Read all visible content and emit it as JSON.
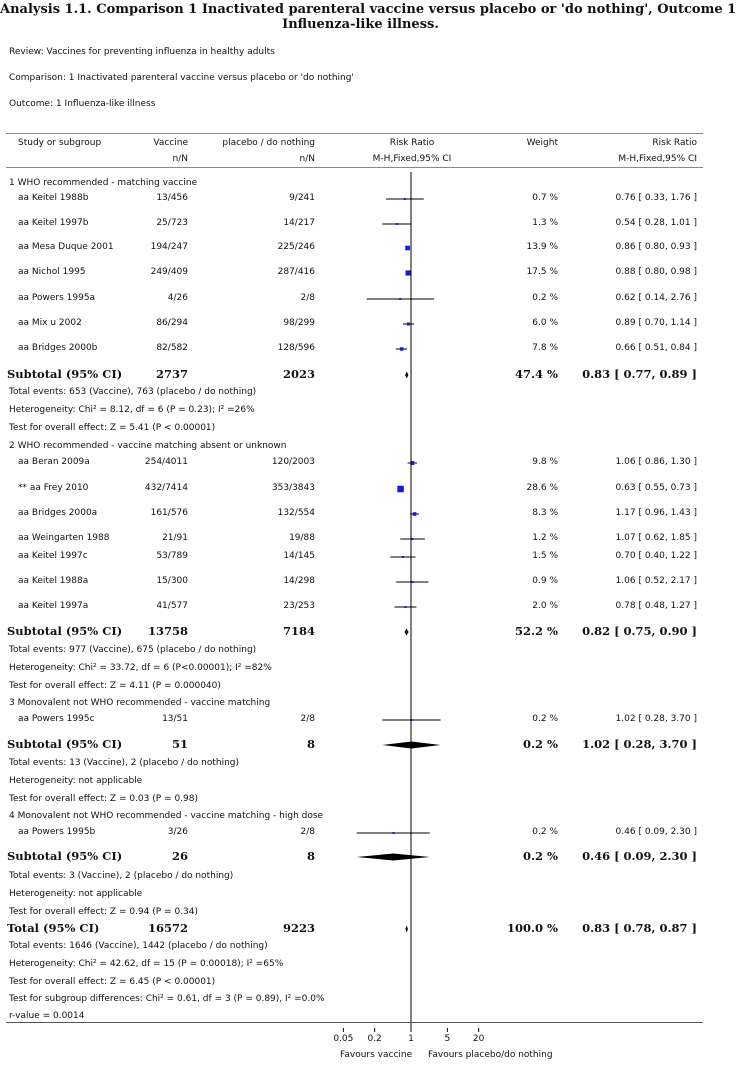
{
  "title_line1": "Analysis 1.1.   Comparison 1 Inactivated parenteral vaccine versus placebo or 'do nothing', Outcome 1",
  "title_line2": "Influenza-like illness.",
  "review": "Review:    Vaccines for preventing influenza in healthy adults",
  "comparison": "Comparison:    1 Inactivated parenteral vaccine versus placebo or 'do nothing'",
  "outcome": "Outcome:    1 Influenza-like illness",
  "headers": {
    "study": "Study or subgroup",
    "vaccine": "Vaccine",
    "vaccine_sub": "n/N",
    "placebo": "placebo / do nothing",
    "placebo_sub": "n/N",
    "rr": "Risk Ratio",
    "rr_sub": "M-H,Fixed,95% CI",
    "weight": "Weight",
    "rr2": "Risk Ratio",
    "rr2_sub": "M-H,Fixed,95% CI"
  },
  "groups": [
    {
      "heading": "1 WHO recommended - matching vaccine",
      "studies": [
        {
          "name": "aa Keitel 1988b",
          "vac": "13/456",
          "pla": "9/241",
          "weight": "0.7 %",
          "ci": "0.76 [ 0.33, 1.76 ]",
          "rr": 0.76,
          "lo": 0.33,
          "hi": 1.76,
          "w": 0.7
        },
        {
          "name": "aa Keitel 1997b",
          "vac": "25/723",
          "pla": "14/217",
          "weight": "1.3 %",
          "ci": "0.54 [ 0.28, 1.01 ]",
          "rr": 0.54,
          "lo": 0.28,
          "hi": 1.01,
          "w": 1.3
        },
        {
          "name": "aa Mesa Duque 2001",
          "vac": "194/247",
          "pla": "225/246",
          "weight": "13.9 %",
          "ci": "0.86 [ 0.80, 0.93 ]",
          "rr": 0.86,
          "lo": 0.8,
          "hi": 0.93,
          "w": 13.9
        },
        {
          "name": "aa Nichol 1995",
          "vac": "249/409",
          "pla": "287/416",
          "weight": "17.5 %",
          "ci": "0.88 [ 0.80, 0.98 ]",
          "rr": 0.88,
          "lo": 0.8,
          "hi": 0.98,
          "w": 17.5
        },
        {
          "name": "aa Powers 1995a",
          "vac": "4/26",
          "pla": "2/8",
          "weight": "0.2 %",
          "ci": "0.62 [ 0.14, 2.76 ]",
          "rr": 0.62,
          "lo": 0.14,
          "hi": 2.76,
          "w": 0.2
        },
        {
          "name": "aa Mix   u 2002",
          "vac": "86/294",
          "pla": "98/299",
          "weight": "6.0 %",
          "ci": "0.89 [ 0.70, 1.14 ]",
          "rr": 0.89,
          "lo": 0.7,
          "hi": 1.14,
          "w": 6.0
        },
        {
          "name": "aa Bridges 2000b",
          "vac": "82/582",
          "pla": "128/596",
          "weight": "7.8 %",
          "ci": "0.66 [ 0.51, 0.84 ]",
          "rr": 0.66,
          "lo": 0.51,
          "hi": 0.84,
          "w": 7.8
        }
      ],
      "subtotal": {
        "label": "Subtotal (95% CI)",
        "vac": "2737",
        "pla": "2023",
        "weight": "47.4 %",
        "ci": "0.83 [ 0.77, 0.89 ]",
        "rr": 0.83,
        "lo": 0.77,
        "hi": 0.89
      },
      "notes": [
        "Total events: 653 (Vaccine), 763 (placebo / do nothing)",
        "Heterogeneity: Chi² = 8.12, df = 6 (P = 0.23); I² =26%",
        "Test for overall effect: Z = 5.41 (P < 0.00001)"
      ]
    },
    {
      "heading": "2 WHO recommended - vaccine matching absent or unknown",
      "studies": [
        {
          "name": "aa Beran 2009a",
          "vac": "254/4011",
          "pla": "120/2003",
          "weight": "9.8 %",
          "ci": "1.06 [ 0.86, 1.30 ]",
          "rr": 1.06,
          "lo": 0.86,
          "hi": 1.3,
          "w": 9.8
        },
        {
          "name": "** aa Frey 2010",
          "vac": "432/7414",
          "pla": "353/3843",
          "weight": "28.6 %",
          "ci": "0.63 [ 0.55, 0.73 ]",
          "rr": 0.63,
          "lo": 0.55,
          "hi": 0.73,
          "w": 28.6
        },
        {
          "name": "aa Bridges 2000a",
          "vac": "161/576",
          "pla": "132/554",
          "weight": "8.3 %",
          "ci": "1.17 [ 0.96, 1.43 ]",
          "rr": 1.17,
          "lo": 0.96,
          "hi": 1.43,
          "w": 8.3
        },
        {
          "name": "aa Weingarten 1988",
          "vac": "21/91",
          "pla": "19/88",
          "weight": "1.2 %",
          "ci": "1.07 [ 0.62, 1.85 ]",
          "rr": 1.07,
          "lo": 0.62,
          "hi": 1.85,
          "w": 1.2
        },
        {
          "name": "aa Keitel 1997c",
          "vac": "53/789",
          "pla": "14/145",
          "weight": "1.5 %",
          "ci": "0.70 [ 0.40, 1.22 ]",
          "rr": 0.7,
          "lo": 0.4,
          "hi": 1.22,
          "w": 1.5
        },
        {
          "name": "aa Keitel 1988a",
          "vac": "15/300",
          "pla": "14/298",
          "weight": "0.9 %",
          "ci": "1.06 [ 0.52, 2.17 ]",
          "rr": 1.06,
          "lo": 0.52,
          "hi": 2.17,
          "w": 0.9
        },
        {
          "name": "aa Keitel 1997a",
          "vac": "41/577",
          "pla": "23/253",
          "weight": "2.0 %",
          "ci": "0.78 [ 0.48, 1.27 ]",
          "rr": 0.78,
          "lo": 0.48,
          "hi": 1.27,
          "w": 2.0
        }
      ],
      "subtotal": {
        "label": "Subtotal (95% CI)",
        "vac": "13758",
        "pla": "7184",
        "weight": "52.2 %",
        "ci": "0.82 [ 0.75, 0.90 ]",
        "rr": 0.82,
        "lo": 0.75,
        "hi": 0.9
      },
      "notes": [
        "Total events: 977 (Vaccine), 675 (placebo / do nothing)",
        "Heterogeneity: Chi² = 33.72, df = 6 (P<0.00001); I² =82%",
        "Test for overall effect: Z = 4.11 (P = 0.000040)"
      ]
    },
    {
      "heading": "3 Monovalent not WHO recommended - vaccine matching",
      "studies": [
        {
          "name": "aa Powers 1995c",
          "vac": "13/51",
          "pla": "2/8",
          "weight": "0.2 %",
          "ci": "1.02 [ 0.28, 3.70 ]",
          "rr": 1.02,
          "lo": 0.28,
          "hi": 3.7,
          "w": 0.2
        }
      ],
      "subtotal": {
        "label": "Subtotal (95% CI)",
        "vac": "51",
        "pla": "8",
        "weight": "0.2 %",
        "ci": "1.02 [ 0.28, 3.70 ]",
        "rr": 1.02,
        "lo": 0.28,
        "hi": 3.7
      },
      "notes": [
        "Total events: 13 (Vaccine), 2 (placebo / do nothing)",
        "Heterogeneity: not applicable",
        "Test for overall effect: Z = 0.03 (P = 0.98)"
      ]
    },
    {
      "heading": "4 Monovalent not WHO recommended - vaccine matching - high dose",
      "studies": [
        {
          "name": "aa Powers 1995b",
          "vac": "3/26",
          "pla": "2/8",
          "weight": "0.2 %",
          "ci": "0.46 [ 0.09, 2.30 ]",
          "rr": 0.46,
          "lo": 0.09,
          "hi": 2.3,
          "w": 0.2
        }
      ],
      "subtotal": {
        "label": "Subtotal (95% CI)",
        "vac": "26",
        "pla": "8",
        "weight": "0.2 %",
        "ci": "0.46 [ 0.09, 2.30 ]",
        "rr": 0.46,
        "lo": 0.09,
        "hi": 2.3
      },
      "notes": [
        "Total events: 3 (Vaccine), 2 (placebo / do nothing)",
        "Heterogeneity: not applicable",
        "Test for overall effect: Z = 0.94 (P = 0.34)"
      ]
    }
  ],
  "total": {
    "label": "Total (95% CI)",
    "vac": "16572",
    "pla": "9223",
    "weight": "100.0 %",
    "ci": "0.83 [ 0.78, 0.87 ]",
    "rr": 0.83,
    "lo": 0.78,
    "hi": 0.87
  },
  "total_notes": [
    "Total events: 1646 (Vaccine), 1442 (placebo / do nothing)",
    "Heterogeneity: Chi² = 42.62, df = 15 (P = 0.00018); I² =65%",
    "Test for overall effect: Z = 6.45 (P < 0.00001)",
    "Test for subgroup differences: Chi² = 0.61, df = 3 (P = 0.89), I² =0.0%"
  ],
  "rvalue": "r-value = 0.0014",
  "axis": {
    "ticks": [
      {
        "value": 0.05,
        "label": "0.05"
      },
      {
        "value": 0.2,
        "label": "0.2"
      },
      {
        "value": 1,
        "label": "1"
      },
      {
        "value": 5,
        "label": "5"
      },
      {
        "value": 20,
        "label": "20"
      }
    ],
    "favours_left": "Favours vaccine",
    "favours_right": "Favours placebo/do nothing",
    "scale": "log"
  },
  "chart_data": {
    "type": "scatter",
    "scale": "log",
    "xlim": [
      0.05,
      20
    ],
    "reference_line": 1,
    "xlabel_left": "Favours vaccine",
    "xlabel_right": "Favours placebo/do nothing",
    "xticks": [
      "0.05",
      "0.2",
      "1",
      "5",
      "20"
    ],
    "colors": {
      "study_square": "#1a1adb",
      "lines": "#000000"
    }
  }
}
